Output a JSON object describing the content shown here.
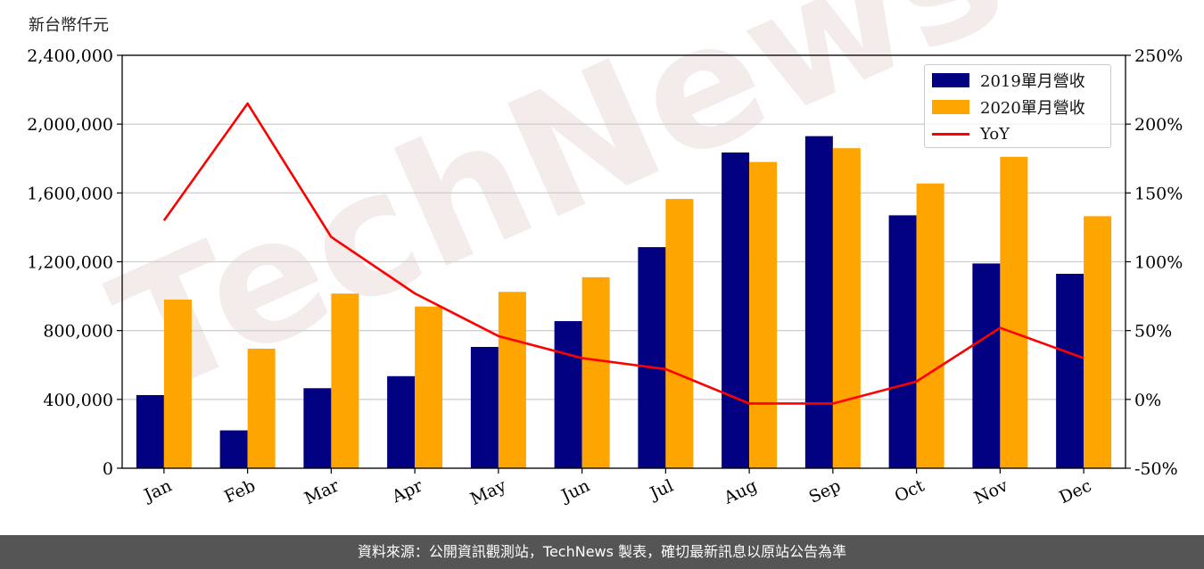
{
  "unit_label": "新台幣仟元",
  "footer_text": "資料來源：公開資訊觀測站，TechNews 製表，確切最新訊息以原站公告為準",
  "watermark": "TechNews",
  "colors": {
    "bar2019": "#000080",
    "bar2020": "#FFA500",
    "yoy": "#FF0000",
    "footer_bg": "#555555"
  },
  "chart_data": {
    "type": "bar",
    "categories": [
      "Jan",
      "Feb",
      "Mar",
      "Apr",
      "May",
      "Jun",
      "Jul",
      "Aug",
      "Sep",
      "Oct",
      "Nov",
      "Dec"
    ],
    "series": [
      {
        "name": "2019單月營收",
        "kind": "bar",
        "axis": "left",
        "values": [
          425000,
          220000,
          465000,
          535000,
          705000,
          855000,
          1285000,
          1835000,
          1930000,
          1470000,
          1190000,
          1130000
        ]
      },
      {
        "name": "2020單月營收",
        "kind": "bar",
        "axis": "left",
        "values": [
          980000,
          695000,
          1015000,
          940000,
          1025000,
          1110000,
          1565000,
          1780000,
          1860000,
          1655000,
          1810000,
          1465000
        ]
      },
      {
        "name": "YoY",
        "kind": "line",
        "axis": "right",
        "values": [
          130,
          215,
          118,
          77,
          46,
          30,
          22,
          -3,
          -3,
          13,
          52,
          30
        ]
      }
    ],
    "ylim_left": [
      0,
      2400000
    ],
    "yticks_left": [
      "0",
      "400,000",
      "800,000",
      "1,200,000",
      "1,600,000",
      "2,000,000",
      "2,400,000"
    ],
    "ylim_right": [
      -50,
      250
    ],
    "yticks_right": [
      "-50%",
      "0%",
      "50%",
      "100%",
      "150%",
      "200%",
      "250%"
    ],
    "grid": "horizontal",
    "legend": "top-right"
  }
}
